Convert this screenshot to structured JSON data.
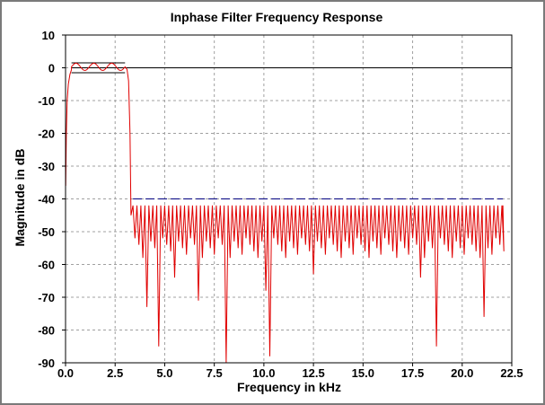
{
  "chart_data": {
    "type": "line",
    "title": "Inphase Filter Frequency Response",
    "xlabel": "Frequency in kHz",
    "ylabel": "Magnitude in dB",
    "xlim": [
      0,
      22.5
    ],
    "ylim": [
      -90,
      10
    ],
    "x_ticks": [
      "0.0",
      "2.5",
      "5.0",
      "7.5",
      "10.0",
      "12.5",
      "15.0",
      "17.5",
      "20.0",
      "22.5"
    ],
    "y_ticks": [
      "10",
      "0",
      "-10",
      "-20",
      "-30",
      "-40",
      "-50",
      "-60",
      "-70",
      "-80",
      "-90"
    ],
    "grid": true,
    "passband_edge_khz": 3.0,
    "stopband_edge_khz": 3.4,
    "end_freq_khz": 22.05,
    "passband_ripple_db": [
      -1.5,
      1.5
    ],
    "stopband_limit_db": -40,
    "stopband_peak_db": -42,
    "stopband_nulls": [
      {
        "x": 3.28,
        "y": -64
      },
      {
        "x": 3.82,
        "y": -58
      },
      {
        "x": 4.05,
        "y": -73
      },
      {
        "x": 4.6,
        "y": -85
      },
      {
        "x": 5.4,
        "y": -64
      },
      {
        "x": 6.6,
        "y": -71
      },
      {
        "x": 7.9,
        "y": -90
      },
      {
        "x": 9.9,
        "y": -68
      },
      {
        "x": 10.2,
        "y": -88
      },
      {
        "x": 12.5,
        "y": -63
      },
      {
        "x": 17.8,
        "y": -64
      },
      {
        "x": 18.7,
        "y": -85
      },
      {
        "x": 21.0,
        "y": -76
      }
    ],
    "series": [
      {
        "color": "#e00000"
      },
      {
        "color": "#000000"
      },
      {
        "color": "#000080"
      }
    ]
  }
}
